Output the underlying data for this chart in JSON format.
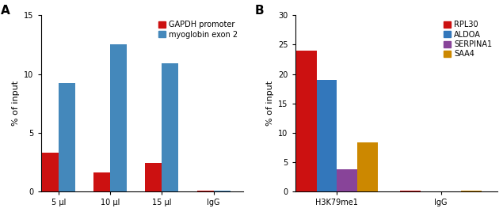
{
  "panel_A": {
    "categories": [
      "5 μl",
      "10 μl",
      "15 μl",
      "IgG"
    ],
    "series": [
      {
        "label": "GAPDH promoter",
        "color": "#cc1111",
        "values": [
          3.3,
          1.6,
          2.4,
          0.04
        ]
      },
      {
        "label": "myoglobin exon 2",
        "color": "#4488bb",
        "values": [
          9.2,
          12.5,
          10.9,
          0.04
        ]
      }
    ],
    "ylim": [
      0,
      15
    ],
    "yticks": [
      0,
      5,
      10,
      15
    ],
    "ylabel": "% of input",
    "panel_label": "A"
  },
  "panel_B": {
    "categories": [
      "H3K79me1",
      "IgG"
    ],
    "series": [
      {
        "label": "RPL30",
        "color": "#cc1111",
        "values": [
          24.0,
          0.18
        ]
      },
      {
        "label": "ALDOA",
        "color": "#3377bb",
        "values": [
          19.0,
          0.05
        ]
      },
      {
        "label": "SERPINA1",
        "color": "#884499",
        "values": [
          3.8,
          0.05
        ]
      },
      {
        "label": "SAA4",
        "color": "#cc8800",
        "values": [
          8.4,
          0.15
        ]
      }
    ],
    "ylim": [
      0,
      30
    ],
    "yticks": [
      0,
      5,
      10,
      15,
      20,
      25,
      30
    ],
    "ylabel": "% of input",
    "panel_label": "B"
  },
  "bar_width": 0.55,
  "figsize": [
    6.35,
    2.68
  ],
  "dpi": 100,
  "background_color": "#ffffff",
  "tick_fontsize": 7,
  "label_fontsize": 8,
  "legend_fontsize": 7
}
